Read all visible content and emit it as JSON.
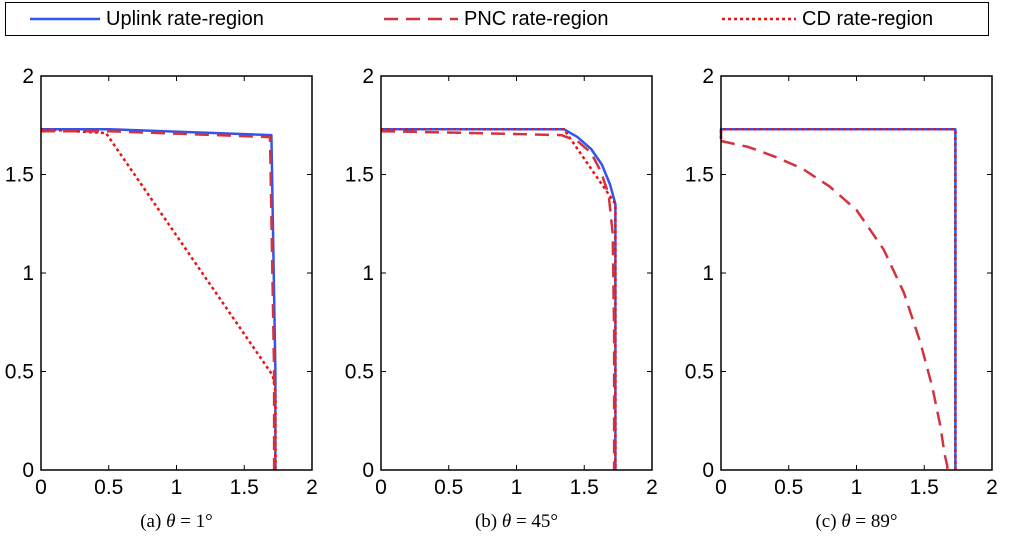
{
  "legend": [
    {
      "label": "Uplink rate-region",
      "color": "#3355ee",
      "dash": "solid"
    },
    {
      "label": "PNC rate-region",
      "color": "#d2343f",
      "dash": "dashed"
    },
    {
      "label": "CD rate-region",
      "color": "#ee1111",
      "dash": "dotted"
    }
  ],
  "chart_data": [
    {
      "type": "line",
      "caption_prefix": "(a) ",
      "caption_theta": "θ",
      "caption_suffix": " = 1°",
      "xlim": [
        0,
        2
      ],
      "ylim": [
        0,
        2
      ],
      "xticks": [
        0,
        0.5,
        1,
        1.5,
        2
      ],
      "yticks": [
        0,
        0.5,
        1,
        1.5,
        2
      ],
      "xtick_labels": [
        "0",
        "0.5",
        "1",
        "1.5",
        "2"
      ],
      "ytick_labels": [
        "0",
        "0.5",
        "1",
        "1.5",
        "2"
      ],
      "series": [
        {
          "name": "Uplink rate-region",
          "x": [
            0,
            0.5,
            1.7,
            1.73,
            1.73
          ],
          "y": [
            1.73,
            1.73,
            1.7,
            0.5,
            0
          ]
        },
        {
          "name": "PNC rate-region",
          "x": [
            0,
            0.5,
            1.69,
            1.72,
            1.72
          ],
          "y": [
            1.72,
            1.72,
            1.69,
            0.5,
            0
          ]
        },
        {
          "name": "CD rate-region",
          "x": [
            0,
            0.48,
            1.71,
            1.73,
            1.73
          ],
          "y": [
            1.73,
            1.71,
            0.48,
            0.4,
            0
          ]
        }
      ]
    },
    {
      "type": "line",
      "caption_prefix": "(b) ",
      "caption_theta": "θ",
      "caption_suffix": " = 45°",
      "xlim": [
        0,
        2
      ],
      "ylim": [
        0,
        2
      ],
      "xticks": [
        0,
        0.5,
        1,
        1.5,
        2
      ],
      "yticks": [
        0,
        0.5,
        1,
        1.5,
        2
      ],
      "xtick_labels": [
        "0",
        "0.5",
        "1",
        "1.5",
        "2"
      ],
      "ytick_labels": [
        "0",
        "0.5",
        "1",
        "1.5",
        "2"
      ],
      "series": [
        {
          "name": "Uplink rate-region",
          "x": [
            0,
            1.35,
            1.45,
            1.55,
            1.63,
            1.69,
            1.73,
            1.73
          ],
          "y": [
            1.73,
            1.73,
            1.69,
            1.63,
            1.55,
            1.45,
            1.35,
            0
          ]
        },
        {
          "name": "PNC rate-region",
          "x": [
            0,
            0.7,
            1.33,
            1.45,
            1.55,
            1.62,
            1.68,
            1.71,
            1.72,
            1.72
          ],
          "y": [
            1.72,
            1.71,
            1.7,
            1.67,
            1.61,
            1.52,
            1.4,
            1.2,
            0.7,
            0
          ]
        },
        {
          "name": "CD rate-region",
          "x": [
            0,
            1.35,
            1.73,
            1.73
          ],
          "y": [
            1.73,
            1.73,
            1.35,
            0
          ]
        }
      ]
    },
    {
      "type": "line",
      "caption_prefix": "(c) ",
      "caption_theta": "θ",
      "caption_suffix": " = 89°",
      "xlim": [
        0,
        2
      ],
      "ylim": [
        0,
        2
      ],
      "xticks": [
        0,
        0.5,
        1,
        1.5,
        2
      ],
      "yticks": [
        0,
        0.5,
        1,
        1.5,
        2
      ],
      "xtick_labels": [
        "0",
        "0.5",
        "1",
        "1.5",
        "2"
      ],
      "ytick_labels": [
        "0",
        "0.5",
        "1",
        "1.5",
        "2"
      ],
      "series": [
        {
          "name": "Uplink rate-region",
          "x": [
            0,
            0,
            1.73,
            1.73
          ],
          "y": [
            1.68,
            1.73,
            1.73,
            0
          ]
        },
        {
          "name": "PNC rate-region",
          "x": [
            0,
            0.2,
            0.4,
            0.6,
            0.8,
            1.0,
            1.2,
            1.35,
            1.47,
            1.56,
            1.62,
            1.65,
            1.67,
            1.67
          ],
          "y": [
            1.67,
            1.64,
            1.59,
            1.53,
            1.44,
            1.32,
            1.12,
            0.9,
            0.65,
            0.42,
            0.22,
            0.08,
            0.02,
            0
          ]
        },
        {
          "name": "CD rate-region",
          "x": [
            0,
            0,
            1.73,
            1.73
          ],
          "y": [
            1.68,
            1.73,
            1.73,
            0
          ]
        }
      ]
    }
  ]
}
